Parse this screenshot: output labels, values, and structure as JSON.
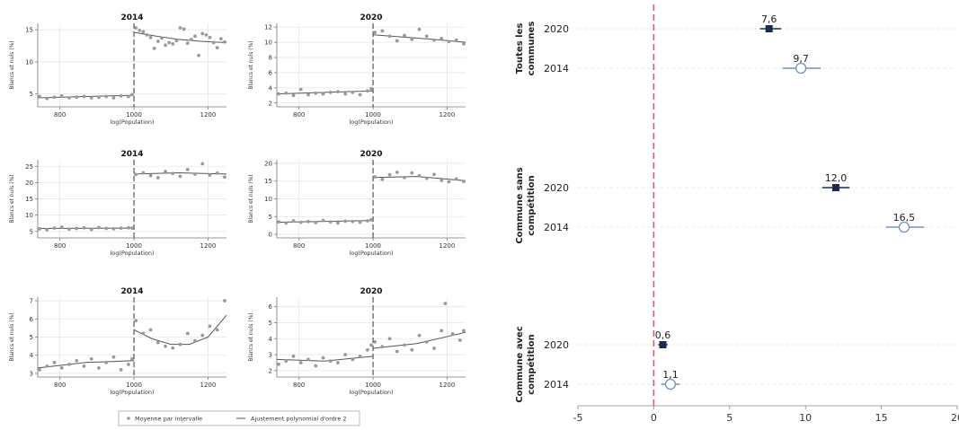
{
  "chart_data": [
    {
      "type": "scatter",
      "panel": "toutes-2014",
      "title": "2014",
      "xlabel": "log(Population)",
      "ylabel": "Blancs et nuls (%)",
      "xlim": [
        740,
        1250
      ],
      "ylim": [
        3,
        16
      ],
      "xticks": [
        800,
        1000,
        1200
      ],
      "yticks": [
        5,
        10,
        15
      ],
      "cutoff": 1000,
      "points": {
        "x": [
          745,
          765,
          785,
          805,
          825,
          845,
          865,
          885,
          905,
          925,
          945,
          965,
          985,
          995,
          1005,
          1015,
          1025,
          1035,
          1045,
          1055,
          1065,
          1075,
          1085,
          1095,
          1105,
          1115,
          1125,
          1135,
          1145,
          1155,
          1165,
          1175,
          1185,
          1195,
          1205,
          1215,
          1225,
          1235,
          1245
        ],
        "y": [
          4.6,
          4.3,
          4.5,
          4.7,
          4.4,
          4.5,
          4.6,
          4.4,
          4.5,
          4.6,
          4.4,
          4.7,
          4.6,
          4.9,
          15.3,
          14.9,
          14.7,
          14.2,
          13.8,
          12.1,
          13.2,
          13.7,
          12.6,
          13.0,
          12.8,
          13.3,
          15.3,
          15.1,
          12.9,
          13.5,
          14.0,
          11.0,
          14.4,
          14.2,
          13.8,
          13.0,
          12.2,
          13.6,
          13.1
        ]
      },
      "fit_left": [
        [
          740,
          4.4
        ],
        [
          1000,
          4.8
        ]
      ],
      "fit_right": [
        [
          1000,
          14.6
        ],
        [
          1060,
          14.0
        ],
        [
          1120,
          13.5
        ],
        [
          1180,
          13.2
        ],
        [
          1250,
          13.0
        ]
      ]
    },
    {
      "type": "scatter",
      "panel": "toutes-2020",
      "title": "2020",
      "xlabel": "log(Population)",
      "ylabel": "Blancs et nuls (%)",
      "xlim": [
        740,
        1250
      ],
      "ylim": [
        1.5,
        12.5
      ],
      "xticks": [
        800,
        1000,
        1200
      ],
      "yticks": [
        2,
        4,
        6,
        8,
        10,
        12
      ],
      "cutoff": 1000,
      "points": {
        "x": [
          745,
          765,
          785,
          805,
          825,
          845,
          865,
          885,
          905,
          925,
          945,
          965,
          985,
          995,
          1005,
          1025,
          1045,
          1065,
          1085,
          1105,
          1125,
          1145,
          1165,
          1185,
          1205,
          1225,
          1245
        ],
        "y": [
          3.2,
          3.3,
          3.0,
          3.8,
          3.1,
          3.3,
          3.2,
          3.4,
          3.5,
          3.2,
          3.4,
          3.1,
          3.6,
          3.9,
          11.3,
          11.5,
          10.8,
          10.2,
          10.9,
          10.4,
          11.7,
          10.8,
          10.3,
          10.5,
          10.1,
          10.3,
          9.8
        ]
      },
      "fit_left": [
        [
          740,
          3.2
        ],
        [
          1000,
          3.6
        ]
      ],
      "fit_right": [
        [
          1000,
          11.0
        ],
        [
          1080,
          10.7
        ],
        [
          1160,
          10.4
        ],
        [
          1250,
          10.0
        ]
      ]
    },
    {
      "type": "scatter",
      "panel": "sans-2014",
      "title": "2014",
      "xlabel": "log(Population)",
      "ylabel": "Blancs et nuls (%)",
      "xlim": [
        740,
        1250
      ],
      "ylim": [
        3,
        27
      ],
      "xticks": [
        800,
        1000,
        1200
      ],
      "yticks": [
        5,
        10,
        15,
        20,
        25
      ],
      "cutoff": 1000,
      "points": {
        "x": [
          745,
          765,
          785,
          805,
          825,
          845,
          865,
          885,
          905,
          925,
          945,
          965,
          985,
          995,
          1005,
          1025,
          1045,
          1065,
          1085,
          1105,
          1125,
          1145,
          1165,
          1185,
          1205,
          1225,
          1245
        ],
        "y": [
          5.8,
          5.5,
          6.0,
          6.3,
          5.7,
          5.9,
          6.1,
          5.6,
          6.2,
          5.9,
          5.8,
          6.0,
          6.1,
          6.0,
          22.5,
          23.0,
          22.1,
          21.5,
          23.4,
          22.8,
          21.9,
          24.0,
          22.6,
          25.8,
          22.3,
          22.9,
          21.7
        ]
      },
      "fit_left": [
        [
          740,
          5.9
        ],
        [
          1000,
          6.0
        ]
      ],
      "fit_right": [
        [
          1000,
          22.6
        ],
        [
          1120,
          23.0
        ],
        [
          1250,
          22.6
        ]
      ]
    },
    {
      "type": "scatter",
      "panel": "sans-2020",
      "title": "2020",
      "xlabel": "log(Population)",
      "ylabel": "Blancs et nuls (%)",
      "xlim": [
        740,
        1250
      ],
      "ylim": [
        -1,
        21
      ],
      "xticks": [
        800,
        1000,
        1200
      ],
      "yticks": [
        0,
        5,
        10,
        15,
        20
      ],
      "cutoff": 1000,
      "points": {
        "x": [
          745,
          765,
          785,
          805,
          825,
          845,
          865,
          885,
          905,
          925,
          945,
          965,
          985,
          995,
          1005,
          1025,
          1045,
          1065,
          1085,
          1105,
          1125,
          1145,
          1165,
          1185,
          1205,
          1225,
          1245
        ],
        "y": [
          3.5,
          3.2,
          3.8,
          3.4,
          3.6,
          3.3,
          3.9,
          3.5,
          3.2,
          3.7,
          3.6,
          3.4,
          3.8,
          4.1,
          16.2,
          15.5,
          16.8,
          17.5,
          16.0,
          17.3,
          16.5,
          15.8,
          16.9,
          15.2,
          14.8,
          15.6,
          14.9
        ]
      },
      "fit_left": [
        [
          740,
          3.4
        ],
        [
          1000,
          3.9
        ]
      ],
      "fit_right": [
        [
          1000,
          16.0
        ],
        [
          1120,
          16.3
        ],
        [
          1250,
          15.1
        ]
      ]
    },
    {
      "type": "scatter",
      "panel": "avec-2014",
      "title": "2014",
      "xlabel": "log(Population)",
      "ylabel": "Blancs et nuls (%)",
      "xlim": [
        740,
        1250
      ],
      "ylim": [
        2.8,
        7.2
      ],
      "xticks": [
        800,
        1000,
        1200
      ],
      "yticks": [
        3,
        4,
        5,
        6,
        7
      ],
      "cutoff": 1000,
      "points": {
        "x": [
          745,
          765,
          785,
          805,
          825,
          845,
          865,
          885,
          905,
          925,
          945,
          965,
          985,
          995,
          1005,
          1025,
          1045,
          1065,
          1085,
          1105,
          1125,
          1145,
          1165,
          1185,
          1205,
          1225,
          1245
        ],
        "y": [
          3.2,
          3.4,
          3.6,
          3.3,
          3.5,
          3.7,
          3.4,
          3.8,
          3.3,
          3.6,
          3.9,
          3.2,
          3.5,
          3.8,
          5.9,
          5.2,
          5.4,
          4.7,
          4.5,
          4.4,
          4.6,
          5.2,
          4.8,
          5.1,
          5.6,
          5.4,
          7.0
        ]
      },
      "fit_left": [
        [
          740,
          3.3
        ],
        [
          870,
          3.6
        ],
        [
          1000,
          3.7
        ]
      ],
      "fit_right": [
        [
          1000,
          5.4
        ],
        [
          1050,
          4.9
        ],
        [
          1100,
          4.6
        ],
        [
          1150,
          4.6
        ],
        [
          1200,
          5.0
        ],
        [
          1250,
          6.2
        ]
      ]
    },
    {
      "type": "scatter",
      "panel": "avec-2020",
      "title": "2020",
      "xlabel": "log(Population)",
      "ylabel": "Blancs et nuls (%)",
      "xlim": [
        740,
        1250
      ],
      "ylim": [
        1.6,
        6.6
      ],
      "xticks": [
        800,
        1000,
        1200
      ],
      "yticks": [
        2,
        3,
        4,
        5,
        6
      ],
      "cutoff": 1000,
      "points": {
        "x": [
          745,
          765,
          785,
          805,
          825,
          845,
          865,
          885,
          905,
          925,
          945,
          965,
          985,
          995,
          1005,
          1025,
          1045,
          1065,
          1085,
          1105,
          1125,
          1145,
          1165,
          1185,
          1195,
          1215,
          1235,
          1245
        ],
        "y": [
          2.4,
          2.6,
          2.9,
          2.5,
          2.7,
          2.3,
          2.8,
          2.6,
          2.5,
          3.0,
          2.7,
          2.9,
          3.3,
          3.6,
          3.8,
          3.5,
          4.0,
          3.2,
          3.6,
          3.3,
          4.2,
          3.8,
          3.4,
          4.5,
          6.2,
          4.3,
          3.9,
          4.5
        ]
      },
      "fit_left": [
        [
          740,
          2.7
        ],
        [
          870,
          2.6
        ],
        [
          1000,
          2.9
        ]
      ],
      "fit_right": [
        [
          1000,
          3.4
        ],
        [
          1120,
          3.7
        ],
        [
          1250,
          4.4
        ]
      ]
    },
    {
      "type": "scatter",
      "panel": "forest-plot",
      "xlim": [
        -5,
        20
      ],
      "xticks": [
        -5,
        0,
        5,
        10,
        15,
        20
      ],
      "reference_line": 0,
      "groups": [
        {
          "label_lines": [
            "Toutes les",
            "communes"
          ],
          "rows": [
            {
              "year": "2020",
              "estimate": 7.6,
              "label": "7,6",
              "ci": [
                7.0,
                8.4
              ],
              "marker": "filled-square"
            },
            {
              "year": "2014",
              "estimate": 9.7,
              "label": "9,7",
              "ci": [
                8.5,
                11.0
              ],
              "marker": "hollow-circle"
            }
          ]
        },
        {
          "label_lines": [
            "Commune sans",
            "compétition"
          ],
          "rows": [
            {
              "year": "2020",
              "estimate": 12.0,
              "label": "12,0",
              "ci": [
                11.1,
                12.9
              ],
              "marker": "filled-square"
            },
            {
              "year": "2014",
              "estimate": 16.5,
              "label": "16,5",
              "ci": [
                15.3,
                17.8
              ],
              "marker": "hollow-circle"
            }
          ]
        },
        {
          "label_lines": [
            "Commune avec",
            "compétition"
          ],
          "rows": [
            {
              "year": "2020",
              "estimate": 0.6,
              "label": "0,6",
              "ci": [
                0.3,
                0.9
              ],
              "marker": "filled-square"
            },
            {
              "year": "2014",
              "estimate": 1.1,
              "label": "1,1",
              "ci": [
                0.5,
                1.7
              ],
              "marker": "hollow-circle"
            }
          ]
        }
      ]
    }
  ],
  "legend": {
    "items": [
      {
        "symbol": "dot",
        "label": "Moyenne par intervalle"
      },
      {
        "symbol": "line",
        "label": "Ajustement polynomial d'ordre 2"
      }
    ]
  },
  "colors": {
    "dot": "#9a9a9a",
    "fit": "#555555",
    "cutoff": "#333333",
    "grid": "#e6e6e6",
    "navy": "#1c2b4a",
    "ci_2014": "#6e94bf",
    "ref": "#e2557a",
    "axis_text": "#333333"
  }
}
